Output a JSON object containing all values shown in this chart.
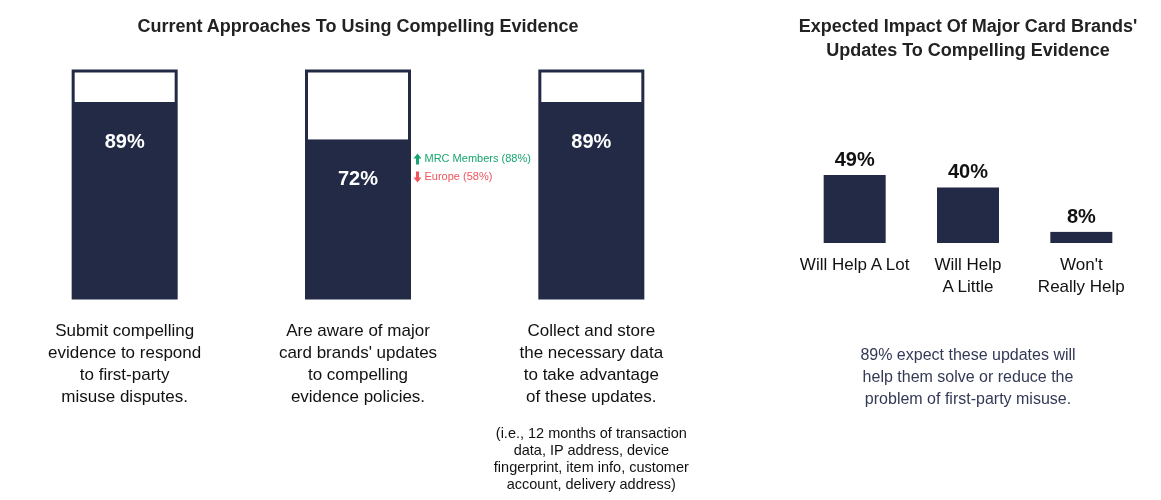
{
  "chart_data": [
    {
      "type": "bar",
      "title": "Current Approaches To Using Compelling Evidence",
      "categories": [
        "Submit compelling evidence to respond to first-party misuse disputes.",
        "Are aware of major card brands' updates to compelling evidence policies.",
        "Collect and store the necessary data to take advantage of these updates."
      ],
      "values": [
        89,
        72,
        89
      ],
      "value_labels": [
        "89%",
        "72%",
        "89%"
      ],
      "color": "#222a45",
      "tick_labels": "x",
      "annotations": [
        "MRC Members (88%)",
        "Europe (58%)",
        "(i.e., 12 months of transaction data, IP address, device fingerprint, item info, customer account, delivery address)"
      ]
    },
    {
      "type": "bar",
      "title": "Expected Impact Of Major Card Brands' Updates To Compelling Evidence",
      "categories": [
        "Will Help A Lot",
        "Will Help A Little",
        "Won't Really Help"
      ],
      "values": [
        49,
        40,
        8
      ],
      "value_labels": [
        "49%",
        "40%",
        "8%"
      ],
      "color": "#222a45",
      "tick_labels": "x",
      "annotations": [
        "89% expect these updates will help them solve or reduce the problem of first-party misuse."
      ]
    }
  ]
}
